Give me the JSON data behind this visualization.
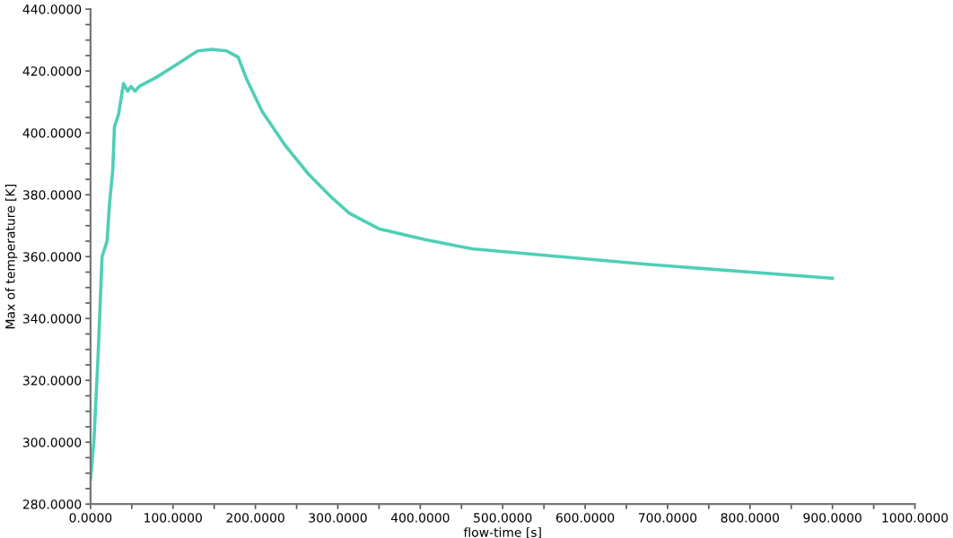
{
  "chart_data": {
    "type": "line",
    "xlabel": "flow-time [s]",
    "ylabel": "Max of temperature [K]",
    "x": [
      0,
      4,
      9,
      14,
      20,
      23,
      27,
      29,
      34,
      40,
      45,
      49,
      54,
      59,
      80,
      101,
      130,
      147,
      165,
      179,
      190,
      208,
      236,
      265,
      293,
      314,
      350,
      406,
      463,
      484,
      675,
      900
    ],
    "series": [
      {
        "color": "#4fcfb6",
        "values": [
          288,
          300,
          327,
          360,
          365,
          377,
          388,
          402,
          406,
          416,
          413.5,
          415,
          413.5,
          415,
          418,
          421.5,
          426.5,
          427,
          426.5,
          424.5,
          417,
          407,
          396,
          386.5,
          379,
          374,
          369,
          365.5,
          362.5,
          362,
          357.5,
          353
        ]
      }
    ],
    "xlim": [
      0,
      1000
    ],
    "ylim": [
      280,
      440
    ],
    "xticks": [
      {
        "value": 0,
        "label": "0.0000"
      },
      {
        "value": 100,
        "label": "100.0000"
      },
      {
        "value": 200,
        "label": "200.0000"
      },
      {
        "value": 300,
        "label": "300.0000"
      },
      {
        "value": 400,
        "label": "400.0000"
      },
      {
        "value": 500,
        "label": "500.0000"
      },
      {
        "value": 600,
        "label": "600.0000"
      },
      {
        "value": 700,
        "label": "700.0000"
      },
      {
        "value": 800,
        "label": "800.0000"
      },
      {
        "value": 900,
        "label": "900.0000"
      },
      {
        "value": 1000,
        "label": "1000.0000"
      }
    ],
    "yticks": [
      {
        "value": 280,
        "label": "280.0000"
      },
      {
        "value": 300,
        "label": "300.0000"
      },
      {
        "value": 320,
        "label": "320.0000"
      },
      {
        "value": 340,
        "label": "340.0000"
      },
      {
        "value": 360,
        "label": "360.0000"
      },
      {
        "value": 380,
        "label": "380.0000"
      },
      {
        "value": 400,
        "label": "400.0000"
      },
      {
        "value": 420,
        "label": "420.0000"
      },
      {
        "value": 440,
        "label": "440.0000"
      }
    ],
    "grid": false,
    "legend": false,
    "marker": "none",
    "line_style": "solid"
  }
}
